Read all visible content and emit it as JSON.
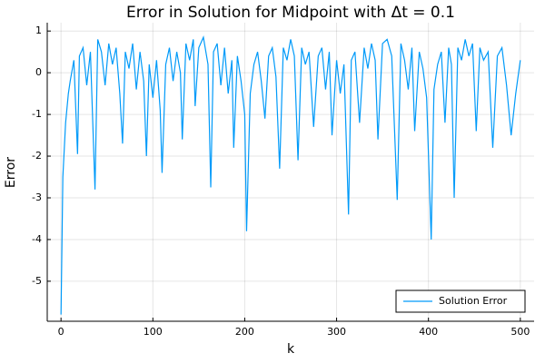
{
  "chart_data": {
    "type": "line",
    "title": "Error in Solution for Midpoint with Δt = 0.1",
    "x_label": "k",
    "y_label": "Error",
    "xlim": [
      -15,
      515
    ],
    "ylim": [
      -5.96,
      1.2
    ],
    "xticks": [
      0,
      100,
      200,
      300,
      400,
      500
    ],
    "yticks": [
      -5,
      -4,
      -3,
      -2,
      -1,
      0,
      1
    ],
    "grid": true,
    "legend_position": "bottom-right",
    "x": [
      0,
      2,
      5,
      8,
      10,
      14,
      18,
      20,
      24,
      28,
      32,
      37,
      40,
      44,
      48,
      52,
      56,
      60,
      64,
      67,
      70,
      74,
      78,
      82,
      86,
      90,
      93,
      96,
      100,
      104,
      108,
      110,
      114,
      118,
      122,
      126,
      130,
      132,
      136,
      140,
      144,
      146,
      150,
      155,
      160,
      163,
      166,
      170,
      174,
      178,
      182,
      186,
      188,
      192,
      196,
      200,
      202,
      206,
      210,
      214,
      218,
      222,
      226,
      230,
      234,
      238,
      242,
      246,
      250,
      254,
      258,
      262,
      266,
      270,
      275,
      280,
      284,
      288,
      292,
      295,
      300,
      304,
      308,
      313,
      316,
      320,
      325,
      330,
      334,
      338,
      342,
      345,
      350,
      355,
      360,
      366,
      370,
      374,
      378,
      382,
      385,
      390,
      394,
      398,
      403,
      406,
      410,
      414,
      418,
      422,
      425,
      428,
      432,
      436,
      440,
      444,
      448,
      452,
      456,
      460,
      465,
      470,
      475,
      480,
      485,
      490,
      495,
      500
    ],
    "series": [
      {
        "name": "Solution Error",
        "color": "#009af9",
        "values": [
          -5.8,
          -2.5,
          -1.2,
          -0.5,
          -0.2,
          0.3,
          -1.95,
          0.4,
          0.6,
          -0.3,
          0.5,
          -2.8,
          0.8,
          0.5,
          -0.3,
          0.7,
          0.2,
          0.6,
          -0.5,
          -1.7,
          0.5,
          0.1,
          0.7,
          -0.4,
          0.5,
          -0.2,
          -2.0,
          0.2,
          -0.6,
          0.3,
          -0.9,
          -2.4,
          0.2,
          0.6,
          -0.2,
          0.5,
          0.0,
          -1.6,
          0.7,
          0.3,
          0.8,
          -0.8,
          0.6,
          0.85,
          0.2,
          -2.75,
          0.5,
          0.7,
          -0.3,
          0.6,
          -0.5,
          0.3,
          -1.8,
          0.4,
          -0.2,
          -1.0,
          -3.8,
          -0.5,
          0.2,
          0.5,
          -0.2,
          -1.1,
          0.4,
          0.6,
          -0.1,
          -2.3,
          0.6,
          0.3,
          0.8,
          0.4,
          -2.1,
          0.6,
          0.2,
          0.5,
          -1.3,
          0.4,
          0.6,
          -0.4,
          0.5,
          -1.5,
          0.3,
          -0.5,
          0.2,
          -3.4,
          0.3,
          0.5,
          -1.2,
          0.6,
          0.1,
          0.7,
          0.3,
          -1.6,
          0.7,
          0.8,
          0.4,
          -3.05,
          0.7,
          0.3,
          -0.4,
          0.6,
          -1.4,
          0.5,
          0.1,
          -0.6,
          -4.0,
          -0.4,
          0.2,
          0.5,
          -1.2,
          0.6,
          0.2,
          -3.0,
          0.6,
          0.3,
          0.8,
          0.4,
          0.7,
          -1.4,
          0.6,
          0.3,
          0.5,
          -1.8,
          0.4,
          0.6,
          -0.3,
          -1.5,
          -0.5,
          0.3
        ]
      }
    ]
  }
}
